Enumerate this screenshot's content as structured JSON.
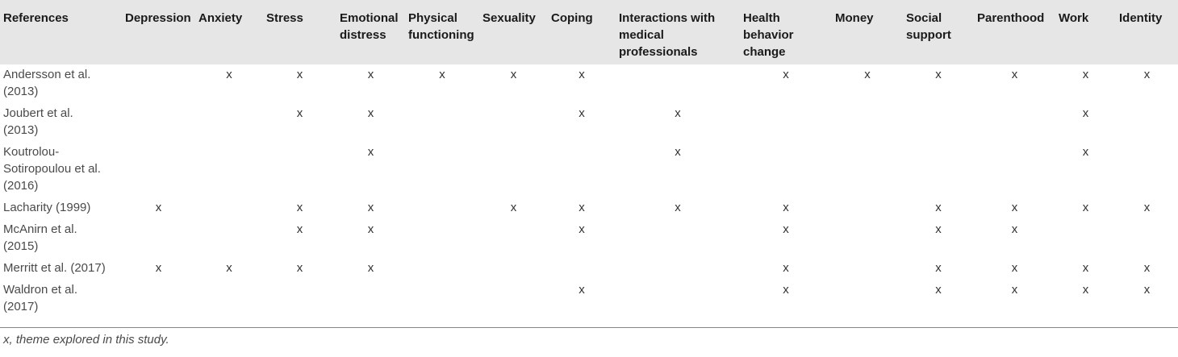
{
  "table": {
    "headers": [
      "References",
      "Depression",
      "Anxiety",
      "Stress",
      "Emotional\ndistress",
      "Physical\nfunctioning",
      "Sexuality",
      "Coping",
      "Interactions with\nmedical\nprofessionals",
      "Health\nbehavior\nchange",
      "Money",
      "Social\nsupport",
      "Parenthood",
      "Work",
      "Identity"
    ],
    "rows": [
      {
        "ref": "Andersson et al.\n(2013)",
        "cells": [
          "",
          "x",
          "x",
          "x",
          "x",
          "x",
          "x",
          "",
          "x",
          "x",
          "x",
          "x",
          "x",
          "x"
        ]
      },
      {
        "ref": "Joubert et al.\n(2013)",
        "cells": [
          "",
          "",
          "x",
          "x",
          "",
          "",
          "x",
          "x",
          "",
          "",
          "",
          "",
          "x",
          ""
        ]
      },
      {
        "ref": "Koutrolou-\nSotiropoulou et al.\n(2016)",
        "cells": [
          "",
          "",
          "",
          "x",
          "",
          "",
          "",
          "x",
          "",
          "",
          "",
          "",
          "x",
          ""
        ]
      },
      {
        "ref": "Lacharity (1999)",
        "cells": [
          "x",
          "",
          "x",
          "x",
          "",
          "x",
          "x",
          "x",
          "x",
          "",
          "x",
          "x",
          "x",
          "x"
        ]
      },
      {
        "ref": "McAnirn et al.\n(2015)",
        "cells": [
          "",
          "",
          "x",
          "x",
          "",
          "",
          "x",
          "",
          "x",
          "",
          "x",
          "x",
          "",
          ""
        ]
      },
      {
        "ref": "Merritt et al. (2017)",
        "cells": [
          "x",
          "x",
          "x",
          "x",
          "",
          "",
          "",
          "",
          "x",
          "",
          "x",
          "x",
          "x",
          "x"
        ]
      },
      {
        "ref": "Waldron et al.\n(2017)",
        "cells": [
          "",
          "",
          "",
          "",
          "",
          "",
          "x",
          "",
          "x",
          "",
          "x",
          "x",
          "x",
          "x"
        ]
      }
    ],
    "footnote": "x, theme explored in this study."
  }
}
